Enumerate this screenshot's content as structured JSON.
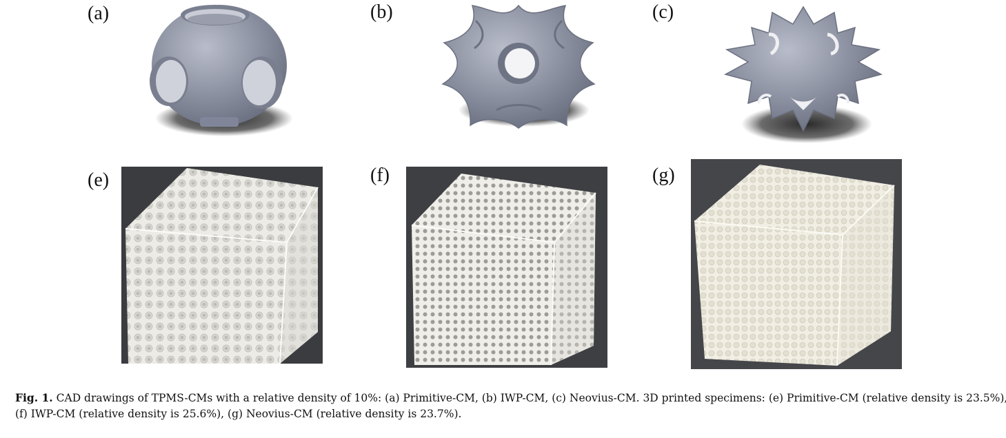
{
  "panels": {
    "a": {
      "label": "(a)",
      "subject": "Primitive-CM CAD drawing"
    },
    "b": {
      "label": "(b)",
      "subject": "IWP-CM CAD drawing"
    },
    "c": {
      "label": "(c)",
      "subject": "Neovius-CM CAD drawing"
    },
    "e": {
      "label": "(e)",
      "subject": "Primitive-CM printed specimen"
    },
    "f": {
      "label": "(f)",
      "subject": "IWP-CM printed specimen"
    },
    "g": {
      "label": "(g)",
      "subject": "Neovius-CM printed specimen"
    }
  },
  "caption": {
    "lead": "Fig. 1.",
    "line1": " CAD drawings of TPMS-CMs with a relative density of 10%: (a) Primitive-CM, (b) IWP-CM, (c) Neovius-CM. 3D printed specimens: (e) Primitive-CM (relative density is 23.5%),",
    "line2": "(f) IWP-CM (relative density is 25.6%), (g) Neovius-CM (relative density is 23.7%)."
  },
  "colors": {
    "cad_gray": "#8a8fa0",
    "shadow": "#2a2a2a",
    "photo_background": "#3b3c40",
    "specimen_white": "#f2f1ec"
  }
}
